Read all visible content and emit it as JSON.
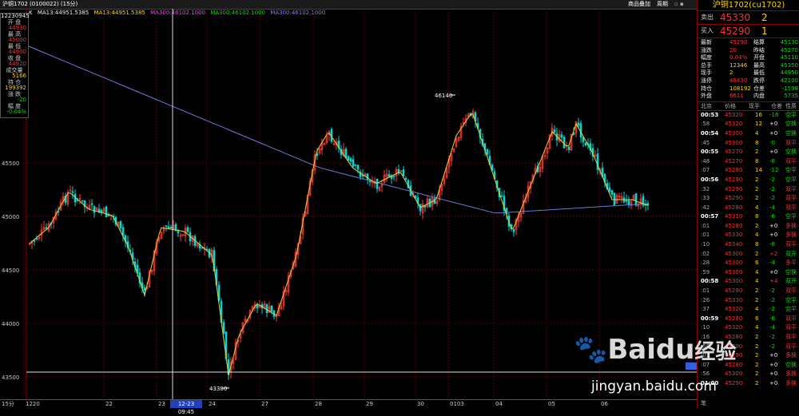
{
  "titlebar": {
    "symbol": "沪铜1702 (0100022) (15分)",
    "menu1": "商品叠加",
    "menu2": "周期",
    "window_icons": ""
  },
  "ma": {
    "label": "K",
    "ma13": "MA13:44951.5385",
    "ma13b": "MA13:44951.5385",
    "ma300": "MA300:46102.1000",
    "ma300b": "MA300:46102.1000",
    "ma300c": "MA300:46102.1000"
  },
  "datawin": {
    "time": "12230945",
    "rows": [
      {
        "label": "开 盘",
        "value": "44930"
      },
      {
        "label": "最 高",
        "value": "45000"
      },
      {
        "label": "最 低",
        "value": "44900"
      },
      {
        "label": "收 盘",
        "value": "44920"
      },
      {
        "label": "成交量",
        "value": "5166"
      },
      {
        "label": "持 仓",
        "value": "199392"
      },
      {
        "label": "涨 跌",
        "value": "-20"
      },
      {
        "label": "幅 度",
        "value": "-0.04%"
      }
    ]
  },
  "yaxis": {
    "labels": [
      "45500",
      "45000",
      "44500",
      "44000",
      "43500"
    ]
  },
  "annotations": {
    "high": "46140",
    "low": "43380"
  },
  "xaxis": {
    "labels": [
      "15分",
      "1220",
      "22",
      "23",
      "24",
      "27",
      "28",
      "29",
      "30",
      "0103",
      "04",
      "05",
      "06"
    ],
    "crosshair_date": "12-23 09:45"
  },
  "right_panel": {
    "title": "沪铜1702(cu1702)",
    "sell": {
      "label": "卖出",
      "price": "45330",
      "vol": "2"
    },
    "buy": {
      "label": "买入",
      "price": "45290",
      "vol": "1"
    },
    "stats": [
      {
        "l1": "最新",
        "v1": "45290",
        "l2": "结算",
        "v2": "45130"
      },
      {
        "l1": "涨跌",
        "v1": "20",
        "l2": "昨结",
        "v2": "45270"
      },
      {
        "l1": "幅度",
        "v1": "0.04%",
        "l2": "开盘",
        "v2": "45110"
      },
      {
        "l1": "总手",
        "v1": "12346",
        "l2": "最高",
        "v2": "45350"
      },
      {
        "l1": "现手",
        "v1": "2",
        "l2": "最低",
        "v2": "44950"
      },
      {
        "l1": "涨停",
        "v1": "48430",
        "l2": "跌停",
        "v2": "42100"
      },
      {
        "l1": "持仓",
        "v1": "108192",
        "l2": "仓差",
        "v2": "-1598"
      },
      {
        "l1": "外盘",
        "v1": "6611",
        "l2": "内盘",
        "v2": "5735"
      }
    ],
    "tick_header": [
      "北京",
      "价格",
      "现手",
      "仓差",
      "性质"
    ],
    "ticks": [
      [
        "00:53",
        "45320",
        "16",
        "-16",
        "空平"
      ],
      [
        ":58",
        "45320",
        "12",
        "+0",
        "空换"
      ],
      [
        "00:54",
        "45300",
        "4",
        "+0",
        "空换"
      ],
      [
        ":45",
        "45300",
        "8",
        "-0",
        "双平"
      ],
      [
        "00:55",
        "45270",
        "2",
        "+0",
        "空换"
      ],
      [
        ":48",
        "45270",
        "8",
        "-8",
        "双平"
      ],
      [
        ":07",
        "45280",
        "14",
        "-12",
        "空平"
      ],
      [
        "00:56",
        "45290",
        "2",
        "-2",
        "空平"
      ],
      [
        ":32",
        "45290",
        "2",
        "-2",
        "双平"
      ],
      [
        ":33",
        "45290",
        "2",
        "-2",
        "双平"
      ],
      [
        ":42",
        "45280",
        "4",
        "-4",
        "双平"
      ],
      [
        "00:57",
        "45310",
        "8",
        "-6",
        "空平"
      ],
      [
        ":01",
        "45280",
        "2",
        "+0",
        "多换"
      ],
      [
        ":01",
        "45330",
        "4",
        "+0",
        "多换"
      ],
      [
        ":10",
        "45340",
        "8",
        "-8",
        "双平"
      ],
      [
        ":02",
        "45300",
        "2",
        "+2",
        "双开"
      ],
      [
        ":28",
        "45300",
        "6",
        "-4",
        "多平"
      ],
      [
        ":59",
        "45300",
        "4",
        "+0",
        "空换"
      ],
      [
        "00:58",
        "45300",
        "4",
        "+4",
        "双开"
      ],
      [
        ":01",
        "45290",
        "2",
        "-2",
        "双平"
      ],
      [
        ":26",
        "45330",
        "2",
        "-2",
        "空平"
      ],
      [
        ":37",
        "45320",
        "4",
        "-2",
        "空平"
      ],
      [
        "00:59",
        "45280",
        "6",
        "-6",
        "双平"
      ],
      [
        ":10",
        "45320",
        "4",
        "-4",
        "双平"
      ],
      [
        ":16",
        "45280",
        "2",
        "-2",
        "双平"
      ],
      [
        ":58",
        "45290",
        "2",
        "-2",
        "双平"
      ],
      [
        ":01",
        "45290",
        "2",
        "+0",
        "多换"
      ],
      [
        ":07",
        "45280",
        "2",
        "+0",
        "空换"
      ],
      [
        ":56",
        "45300",
        "2",
        "+0",
        "多换"
      ],
      [
        "01:00",
        "45290",
        "2",
        "+0",
        "多换"
      ]
    ],
    "bottom_label": "笔"
  },
  "watermark": {
    "brand": "Baidu",
    "cn": "经验",
    "url": "jingyan.baidu.com"
  }
}
